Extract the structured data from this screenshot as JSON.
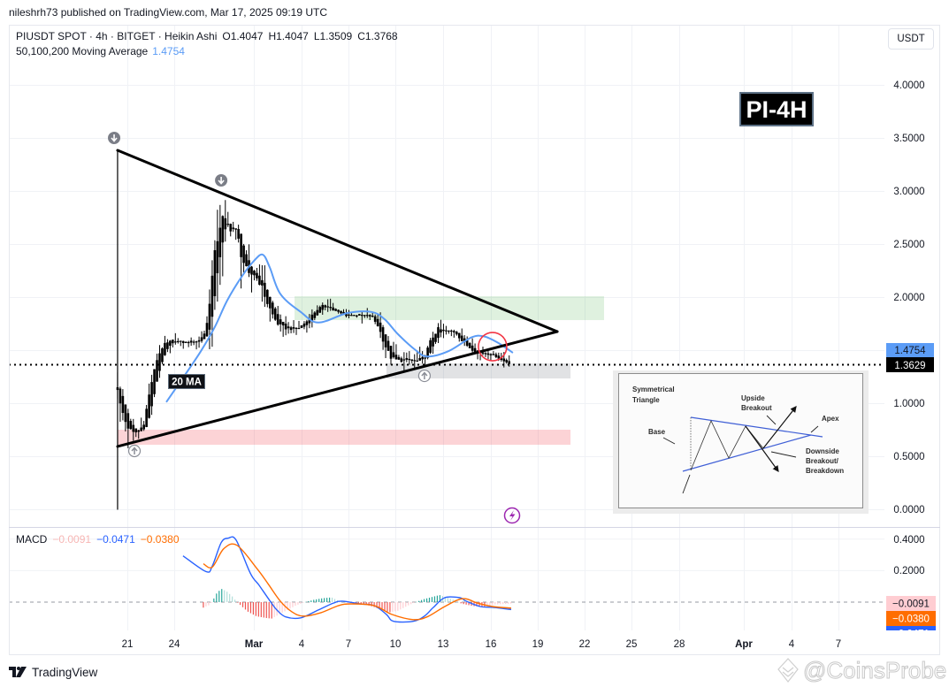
{
  "attribution": "nileshrh73 published on TradingView.com, Mar 17, 2025 09:19 UTC",
  "legend": {
    "symbol": "PIUSDT SPOT · 4h · BITGET · Heikin Ashi",
    "open": "O1.4047",
    "high": "H1.4047",
    "low": "L1.3509",
    "close": "C1.3768",
    "ma_name": "50,100,200 Moving Average",
    "ma_value": "1.4754"
  },
  "currency_button": "USDT",
  "price_axis": {
    "labels": [
      "4.0000",
      "3.5000",
      "3.0000",
      "2.5000",
      "2.0000",
      "1.0000",
      "0.5000",
      "0.0000"
    ],
    "ma_price_label": "1.4754",
    "last_price_label": "1.3629"
  },
  "macd_pane": {
    "title": "MACD",
    "histogram": "−0.0091",
    "macd": "−0.0471",
    "signal": "−0.0380",
    "axis_labels": [
      "0.4000",
      "0.2000"
    ],
    "histogram_label": "−0.0091",
    "signal_label": "−0.0380",
    "macd_label": "−0.0471"
  },
  "time_axis": {
    "labels": [
      "21",
      "24",
      "Mar",
      "4",
      "7",
      "10",
      "13",
      "16",
      "19",
      "22",
      "25",
      "28",
      "Apr",
      "4",
      "7"
    ]
  },
  "drawings": {
    "chart_label": "PI-4H",
    "ma_label": "20 MA"
  },
  "inset": {
    "title_line1": "Symmetrical",
    "title_line2": "Triangle",
    "upside_1": "Upside",
    "upside_2": "Breakout",
    "apex": "Apex",
    "base": "Base",
    "downside_1": "Downside",
    "downside_2": "Breakout/",
    "downside_3": "Breakdown"
  },
  "branding": {
    "logo_text": "TradingView",
    "watermark": "@CoinsProbe"
  },
  "colors": {
    "candle": "#000000",
    "ma_line": "#5b9cf6",
    "macd_line": "#2962ff",
    "signal_line": "#ff6d00",
    "hist_up_strong": "#26a69a",
    "hist_up_weak": "#b2dfdb",
    "hist_down_strong": "#ef5350",
    "hist_down_weak": "#ffcdd2",
    "zone_green": "rgba(76,175,80,0.18)",
    "zone_grey": "rgba(120,123,134,0.22)",
    "zone_red": "rgba(242,54,69,0.22)",
    "highlight_circle": "#f23645",
    "event_icon": "#9c27b0"
  },
  "chart_data": [
    {
      "type": "candlestick",
      "title": "PIUSDT SPOT · 4h · BITGET · Heikin Ashi",
      "xlabel": "",
      "ylabel": "USDT",
      "ylim": [
        0,
        4.0
      ],
      "y_ticks": [
        0.0,
        0.5,
        1.0,
        1.5,
        2.0,
        2.5,
        3.0,
        3.5,
        4.0
      ],
      "x_ticks": [
        "21",
        "24",
        "Mar",
        "4",
        "7",
        "10",
        "13",
        "16",
        "19",
        "22",
        "25",
        "28",
        "Apr",
        "4",
        "7"
      ],
      "x_unit": "days since Feb 21",
      "grid": true,
      "last_candle": {
        "open": 1.4047,
        "high": 1.4047,
        "low": 1.3509,
        "close": 1.3768
      },
      "current_price": 1.3629,
      "price_path": [
        [
          -0.62,
          1.15
        ],
        [
          -0.5,
          1.0
        ],
        [
          -0.39,
          0.95
        ],
        [
          -0.06,
          0.8
        ],
        [
          0.34,
          0.72
        ],
        [
          0.73,
          0.73
        ],
        [
          1.07,
          0.82
        ],
        [
          1.29,
          1.01
        ],
        [
          1.57,
          1.22
        ],
        [
          1.91,
          1.43
        ],
        [
          2.3,
          1.55
        ],
        [
          2.86,
          1.59
        ],
        [
          3.7,
          1.57
        ],
        [
          4.54,
          1.59
        ],
        [
          4.99,
          1.68
        ],
        [
          5.27,
          2.05
        ],
        [
          5.55,
          2.4
        ],
        [
          5.83,
          2.66
        ],
        [
          6.06,
          2.74
        ],
        [
          6.34,
          2.68
        ],
        [
          6.67,
          2.65
        ],
        [
          6.95,
          2.59
        ],
        [
          7.24,
          2.4
        ],
        [
          7.63,
          2.2
        ],
        [
          8.02,
          2.22
        ],
        [
          8.47,
          2.12
        ],
        [
          8.86,
          1.95
        ],
        [
          9.31,
          1.8
        ],
        [
          9.76,
          1.71
        ],
        [
          10.32,
          1.7
        ],
        [
          10.88,
          1.71
        ],
        [
          11.44,
          1.78
        ],
        [
          12.0,
          1.88
        ],
        [
          12.56,
          1.93
        ],
        [
          13.12,
          1.87
        ],
        [
          13.8,
          1.83
        ],
        [
          14.64,
          1.83
        ],
        [
          15.48,
          1.82
        ],
        [
          15.93,
          1.72
        ],
        [
          16.32,
          1.55
        ],
        [
          16.71,
          1.43
        ],
        [
          17.16,
          1.4
        ],
        [
          17.72,
          1.41
        ],
        [
          18.28,
          1.39
        ],
        [
          18.84,
          1.43
        ],
        [
          19.24,
          1.59
        ],
        [
          19.68,
          1.7
        ],
        [
          20.25,
          1.68
        ],
        [
          20.81,
          1.67
        ],
        [
          21.2,
          1.59
        ],
        [
          21.65,
          1.53
        ],
        [
          22.21,
          1.47
        ],
        [
          22.77,
          1.47
        ],
        [
          23.33,
          1.45
        ],
        [
          23.78,
          1.4
        ],
        [
          24.28,
          1.3768
        ]
      ],
      "series": [
        {
          "name": "20 MA",
          "color": "#5b9cf6",
          "last_value": 1.4754,
          "points": [
            [
              2.47,
              1.01
            ],
            [
              3.81,
              1.3
            ],
            [
              4.66,
              1.49
            ],
            [
              5.55,
              1.72
            ],
            [
              6.34,
              1.97
            ],
            [
              7.24,
              2.19
            ],
            [
              8.02,
              2.34
            ],
            [
              8.58,
              2.4
            ],
            [
              9.03,
              2.28
            ],
            [
              9.7,
              2.03
            ],
            [
              10.99,
              1.86
            ],
            [
              12.11,
              1.76
            ],
            [
              13.97,
              1.85
            ],
            [
              15.48,
              1.86
            ],
            [
              16.32,
              1.79
            ],
            [
              17.16,
              1.65
            ],
            [
              18.28,
              1.5
            ],
            [
              19.01,
              1.44
            ],
            [
              20.36,
              1.49
            ],
            [
              21.82,
              1.62
            ],
            [
              22.6,
              1.63
            ],
            [
              23.5,
              1.57
            ],
            [
              24.45,
              1.4754
            ]
          ]
        }
      ],
      "trendlines": [
        {
          "name": "triangle-upper-trendline",
          "from": [
            -0.62,
            3.383
          ],
          "to": [
            27.26,
            1.675
          ]
        },
        {
          "name": "triangle-lower-trendline",
          "from": [
            -0.62,
            0.592
          ],
          "to": [
            27.26,
            1.675
          ]
        },
        {
          "name": "triangle-base-line",
          "from": [
            -0.62,
            3.383
          ],
          "to": [
            -0.62,
            0.0
          ]
        }
      ],
      "zones": [
        {
          "name": "resistance-zone-green",
          "color": "zone_green",
          "x": [
            10.6,
            30.23
          ],
          "y": [
            2.008,
            1.783
          ]
        },
        {
          "name": "support-zone-grey",
          "color": "zone_grey",
          "x": [
            16.43,
            28.1
          ],
          "y": [
            1.375,
            1.233
          ]
        },
        {
          "name": "support-zone-red",
          "color": "zone_red",
          "x": [
            -0.62,
            28.1
          ],
          "y": [
            0.75,
            0.608
          ]
        }
      ],
      "markers": [
        {
          "name": "arrow-down-marker",
          "dir": "down",
          "at": [
            -0.84,
            3.5
          ]
        },
        {
          "name": "arrow-down-marker",
          "dir": "down",
          "at": [
            5.95,
            3.1
          ]
        },
        {
          "name": "arrow-up-marker",
          "dir": "up",
          "at": [
            0.45,
            0.55
          ]
        },
        {
          "name": "arrow-up-marker",
          "dir": "up",
          "at": [
            18.84,
            1.258
          ]
        }
      ],
      "highlight": {
        "name": "breakdown-highlight-circle",
        "center": [
          23.16,
          1.533
        ],
        "radius_px": 16
      },
      "annotations": [
        "PI-4H",
        "20 MA",
        "Symmetrical Triangle reference diagram"
      ]
    },
    {
      "type": "line",
      "title": "MACD",
      "values": {
        "histogram": -0.0091,
        "macd": -0.0471,
        "signal": -0.038
      },
      "y_ticks": [
        0.4,
        0.2,
        0.0
      ],
      "series": [
        {
          "name": "MACD",
          "color": "#2962ff",
          "points": [
            [
              3.53,
              0.294
            ],
            [
              4.99,
              0.194
            ],
            [
              5.38,
              0.228
            ],
            [
              5.95,
              0.378
            ],
            [
              6.39,
              0.406
            ],
            [
              6.9,
              0.394
            ],
            [
              7.8,
              0.183
            ],
            [
              8.36,
              0.106
            ],
            [
              9.14,
              -0.006
            ],
            [
              9.48,
              -0.05
            ],
            [
              10.04,
              -0.094
            ],
            [
              10.99,
              -0.1
            ],
            [
              12.11,
              -0.05
            ],
            [
              13.07,
              -0.006
            ],
            [
              13.63,
              0.006
            ],
            [
              14.75,
              -0.011
            ],
            [
              15.65,
              -0.022
            ],
            [
              16.43,
              -0.078
            ],
            [
              16.88,
              -0.122
            ],
            [
              18.12,
              -0.122
            ],
            [
              18.84,
              -0.089
            ],
            [
              19.41,
              -0.033
            ],
            [
              20.13,
              0.028
            ],
            [
              21.09,
              0.028
            ],
            [
              21.48,
              0.006
            ],
            [
              22.38,
              -0.028
            ],
            [
              23.16,
              -0.033
            ],
            [
              24.34,
              -0.0471
            ]
          ]
        },
        {
          "name": "Signal",
          "color": "#ff6d00",
          "points": [
            [
              4.82,
              0.244
            ],
            [
              5.38,
              0.222
            ],
            [
              6.11,
              0.339
            ],
            [
              6.95,
              0.361
            ],
            [
              8.19,
              0.217
            ],
            [
              8.92,
              0.117
            ],
            [
              9.7,
              0.006
            ],
            [
              10.43,
              -0.061
            ],
            [
              11.16,
              -0.089
            ],
            [
              12.28,
              -0.067
            ],
            [
              13.4,
              -0.022
            ],
            [
              14.19,
              -0.011
            ],
            [
              15.65,
              -0.022
            ],
            [
              16.77,
              -0.078
            ],
            [
              18.12,
              -0.111
            ],
            [
              19.01,
              -0.094
            ],
            [
              20.13,
              -0.028
            ],
            [
              21.26,
              0.022
            ],
            [
              22.21,
              -0.006
            ],
            [
              23.16,
              -0.028
            ],
            [
              24.34,
              -0.038
            ]
          ]
        }
      ],
      "histogram": [
        [
          4.82,
          -0.035
        ],
        [
          5.16,
          -0.02
        ],
        [
          5.38,
          0.0
        ],
        [
          5.61,
          0.05
        ],
        [
          5.95,
          0.085
        ],
        [
          6.28,
          0.07
        ],
        [
          6.62,
          0.04
        ],
        [
          6.95,
          0.0
        ],
        [
          7.18,
          -0.02
        ],
        [
          7.63,
          -0.06
        ],
        [
          8.19,
          -0.09
        ],
        [
          8.75,
          -0.1
        ],
        [
          9.14,
          -0.105
        ],
        [
          9.59,
          -0.08
        ],
        [
          10.15,
          -0.05
        ],
        [
          10.71,
          -0.02
        ],
        [
          11.27,
          0.0
        ],
        [
          11.83,
          0.015
        ],
        [
          12.39,
          0.025
        ],
        [
          12.96,
          0.03
        ],
        [
          13.35,
          0.01
        ],
        [
          14.08,
          -0.005
        ],
        [
          14.92,
          -0.01
        ],
        [
          15.76,
          -0.035
        ],
        [
          16.6,
          -0.065
        ],
        [
          17.16,
          -0.055
        ],
        [
          17.83,
          -0.02
        ],
        [
          18.28,
          0.0
        ],
        [
          18.84,
          0.02
        ],
        [
          19.41,
          0.035
        ],
        [
          19.8,
          0.045
        ],
        [
          20.25,
          0.03
        ],
        [
          20.81,
          0.01
        ],
        [
          21.2,
          -0.01
        ],
        [
          21.93,
          -0.025
        ],
        [
          22.66,
          -0.03
        ],
        [
          23.33,
          -0.015
        ],
        [
          24.34,
          -0.0091
        ]
      ]
    }
  ]
}
